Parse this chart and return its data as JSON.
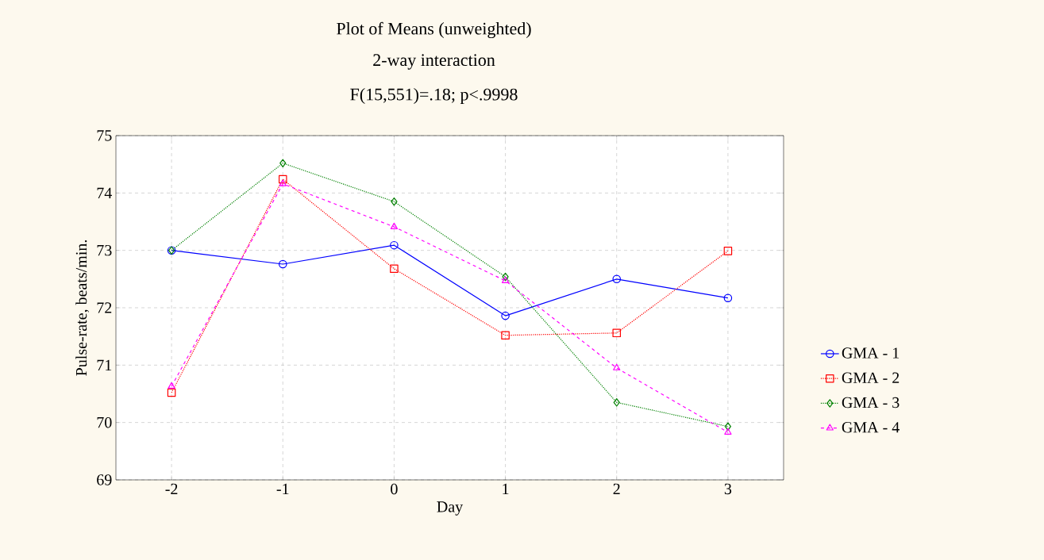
{
  "chart_data": {
    "type": "line",
    "title": "Plot of Means (unweighted)",
    "subtitle": "2-way interaction",
    "annotations": [
      "F(15,551)=.18; p<.9998"
    ],
    "xlabel": "Day",
    "ylabel": "Pulse-rate, beats/min.",
    "x": [
      -2,
      -1,
      0,
      1,
      2,
      3
    ],
    "xlim": [
      -2.5,
      3.5
    ],
    "xticks": [
      -2,
      -1,
      0,
      1,
      2,
      3
    ],
    "ylim": [
      69,
      75
    ],
    "yticks": [
      69,
      70,
      71,
      72,
      73,
      74,
      75
    ],
    "grid": true,
    "legend": "right",
    "series": [
      {
        "name": "GMA - 1",
        "color": "#0000ff",
        "marker": "circle",
        "line_style": "solid",
        "values": [
          73.0,
          72.76,
          73.09,
          71.86,
          72.5,
          72.17
        ]
      },
      {
        "name": "GMA - 2",
        "color": "#ff0000",
        "marker": "square",
        "line_style": "dotted",
        "values": [
          70.52,
          74.24,
          72.68,
          71.52,
          71.56,
          72.99
        ]
      },
      {
        "name": "GMA - 3",
        "color": "#008000",
        "marker": "diamond",
        "line_style": "dotted",
        "values": [
          73.0,
          74.52,
          73.85,
          72.54,
          70.35,
          69.93
        ]
      },
      {
        "name": "GMA - 4",
        "color": "#ff00ff",
        "marker": "triangle",
        "line_style": "dashed",
        "values": [
          70.63,
          74.16,
          73.41,
          72.47,
          70.95,
          69.83
        ]
      }
    ]
  }
}
